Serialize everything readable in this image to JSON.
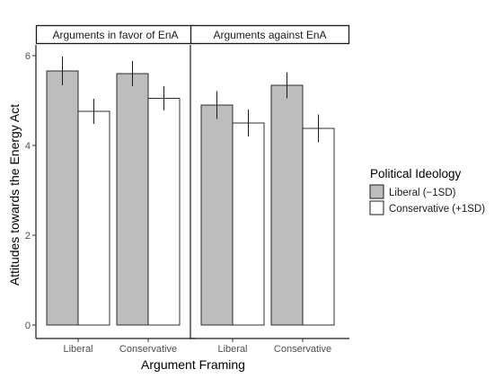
{
  "chart_data": {
    "type": "bar",
    "xlabel": "Argument Framing",
    "ylabel": "Attitudes towards the Energy Act",
    "ylim": [
      0,
      6.2
    ],
    "yticks": [
      0,
      2,
      4,
      6
    ],
    "categories": [
      "Liberal",
      "Conservative"
    ],
    "legend": {
      "title": "Political Ideology",
      "placement": "right",
      "items": [
        {
          "label": "Liberal (−1SD)",
          "color": "#bdbdbd"
        },
        {
          "label": "Conservative (+1SD)",
          "color": "#ffffff"
        }
      ]
    },
    "panels": [
      {
        "label": "Arguments in favor of EnA",
        "series": [
          {
            "values": [
              5.66,
              5.6
            ],
            "errors": [
              0.32,
              0.28
            ]
          },
          {
            "values": [
              4.76,
              5.05
            ],
            "errors": [
              0.28,
              0.27
            ]
          }
        ]
      },
      {
        "label": "Arguments against EnA",
        "series": [
          {
            "values": [
              4.9,
              5.34
            ],
            "errors": [
              0.31,
              0.29
            ]
          },
          {
            "values": [
              4.5,
              4.38
            ],
            "errors": [
              0.3,
              0.31
            ]
          }
        ]
      }
    ]
  }
}
